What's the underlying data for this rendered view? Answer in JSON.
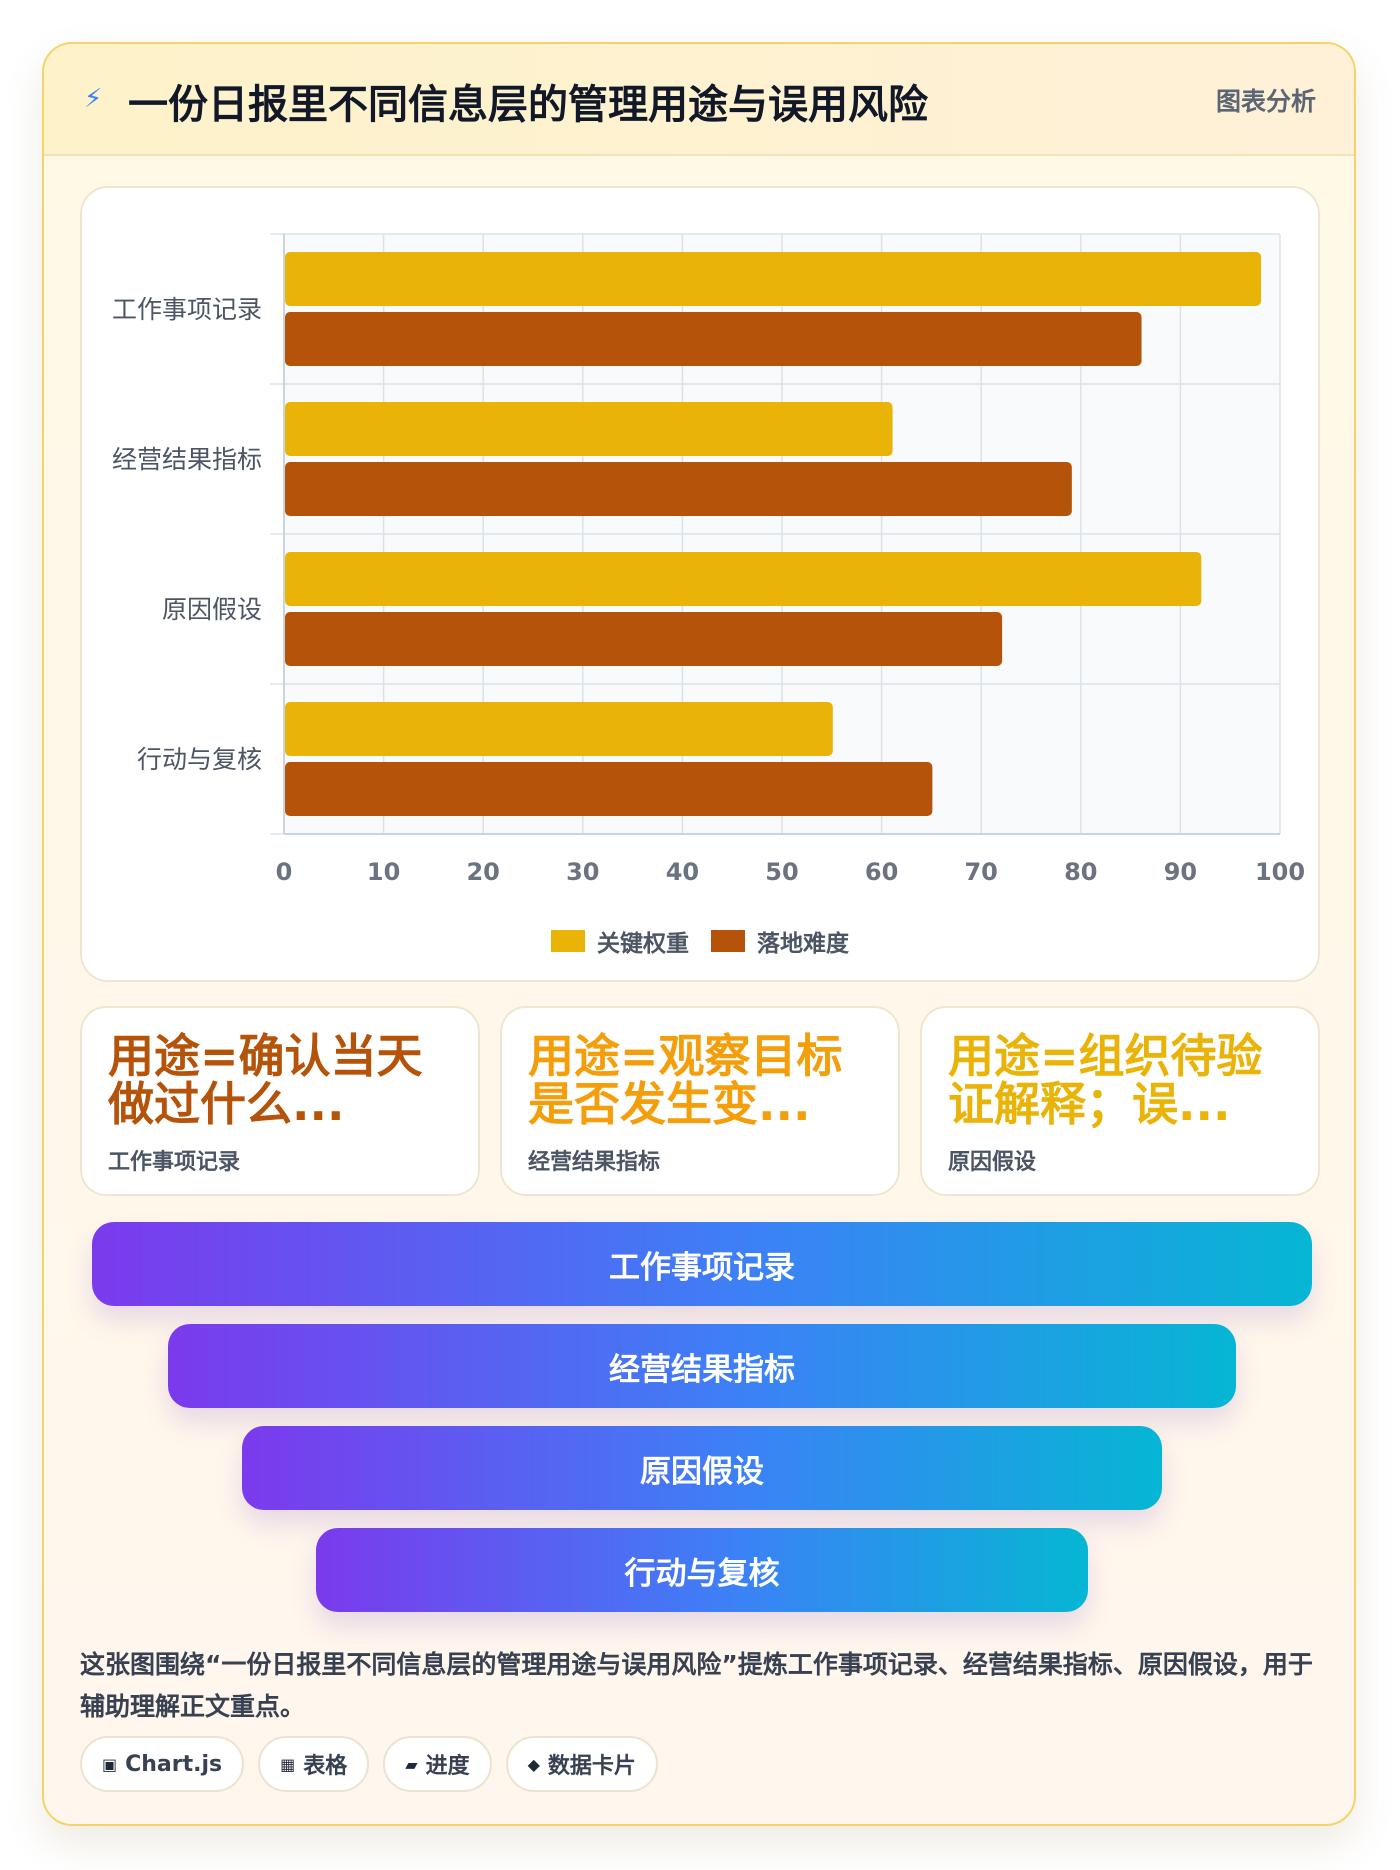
{
  "header": {
    "icon": "lightning-icon",
    "title": "一份日报里不同信息层的管理用途与误用风险",
    "tag": "图表分析"
  },
  "chart_data": {
    "type": "bar",
    "orientation": "horizontal",
    "categories": [
      "工作事项记录",
      "经营结果指标",
      "原因假设",
      "行动与复核"
    ],
    "series": [
      {
        "name": "关键权重",
        "values": [
          98,
          61,
          92,
          55
        ],
        "color": "#eab308"
      },
      {
        "name": "落地难度",
        "values": [
          86,
          79,
          72,
          65
        ],
        "color": "#b45309"
      }
    ],
    "xlim": [
      0,
      100
    ],
    "x_ticks": [
      0,
      10,
      20,
      30,
      40,
      50,
      60,
      70,
      80,
      90,
      100
    ],
    "grid": true,
    "legend_position": "bottom"
  },
  "kpis": [
    {
      "value": "用途=确认当天做过什么...",
      "label": "工作事项记录",
      "color": "#b45309"
    },
    {
      "value": "用途=观察目标是否发生变...",
      "label": "经营结果指标",
      "color": "#f59e0b"
    },
    {
      "value": "用途=组织待验证解释；误...",
      "label": "原因假设",
      "color": "#eab308"
    }
  ],
  "funnel": [
    "工作事项记录",
    "经营结果指标",
    "原因假设",
    "行动与复核"
  ],
  "summary": "这张图围绕“一份日报里不同信息层的管理用途与误用风险”提炼工作事项记录、经营结果指标、原因假设，用于辅助理解正文重点。",
  "chips": [
    {
      "icon": "chart-icon",
      "glyph": "▣",
      "label": "Chart.js"
    },
    {
      "icon": "table-icon",
      "glyph": "▦",
      "label": "表格"
    },
    {
      "icon": "progress-icon",
      "glyph": "▰",
      "label": "进度"
    },
    {
      "icon": "data-card-icon",
      "glyph": "◆",
      "label": "数据卡片"
    }
  ]
}
